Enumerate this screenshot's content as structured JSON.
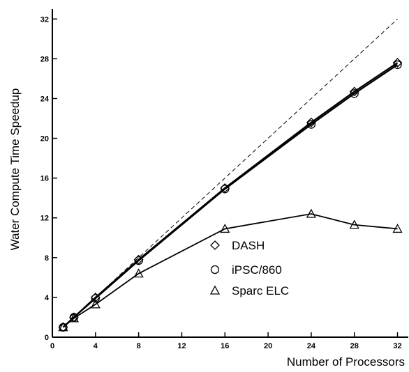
{
  "chart_data": {
    "type": "line",
    "xlabel": "Number of Processors",
    "ylabel": "Water Compute Time Speedup",
    "xlim": [
      0,
      33
    ],
    "ylim": [
      0,
      33
    ],
    "x_ticks": [
      0,
      4,
      8,
      12,
      16,
      20,
      24,
      28,
      32
    ],
    "y_ticks": [
      0,
      4,
      8,
      12,
      16,
      20,
      24,
      28,
      32
    ],
    "ideal_line": {
      "x": [
        1,
        32
      ],
      "y": [
        1,
        32
      ],
      "style": "dashed"
    },
    "legend_position": "center-right",
    "series": [
      {
        "name": "DASH",
        "marker": "diamond",
        "x": [
          1,
          2,
          4,
          8,
          16,
          24,
          28,
          32
        ],
        "y": [
          1.0,
          2.0,
          4.0,
          7.8,
          15.0,
          21.6,
          24.7,
          27.6
        ]
      },
      {
        "name": "iPSC/860",
        "marker": "circle",
        "x": [
          1,
          2,
          4,
          8,
          16,
          24,
          28,
          32
        ],
        "y": [
          1.0,
          2.0,
          3.9,
          7.7,
          14.9,
          21.4,
          24.5,
          27.4
        ]
      },
      {
        "name": "Sparc ELC",
        "marker": "triangle",
        "x": [
          1,
          2,
          4,
          8,
          16,
          24,
          28,
          32
        ],
        "y": [
          1.0,
          1.9,
          3.3,
          6.4,
          10.9,
          12.4,
          11.3,
          10.9
        ]
      }
    ]
  }
}
